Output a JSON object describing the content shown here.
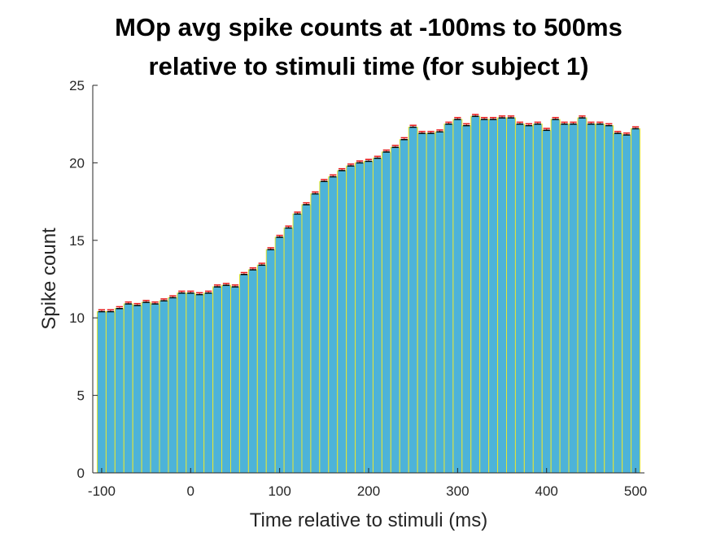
{
  "chart_data": {
    "type": "bar",
    "title_lines": [
      "MOp avg spike counts at -100ms to 500ms",
      "relative to stimuli time (for subject 1)"
    ],
    "xlabel": "Time relative to stimuli (ms)",
    "ylabel": "Spike count",
    "xlim": [
      -110,
      510
    ],
    "ylim": [
      0,
      25
    ],
    "xticks": [
      -100,
      0,
      100,
      200,
      300,
      400,
      500
    ],
    "yticks": [
      0,
      5,
      10,
      15,
      20,
      25
    ],
    "bin_width": 10,
    "bin_start": -100,
    "values": [
      10.4,
      10.4,
      10.6,
      10.9,
      10.8,
      11.0,
      10.9,
      11.1,
      11.3,
      11.6,
      11.6,
      11.5,
      11.6,
      12.0,
      12.1,
      12.0,
      12.8,
      13.1,
      13.4,
      14.4,
      15.2,
      15.8,
      16.7,
      17.3,
      18.0,
      18.8,
      19.1,
      19.5,
      19.8,
      20.0,
      20.1,
      20.3,
      20.7,
      21.0,
      21.5,
      22.3,
      21.9,
      21.9,
      22.0,
      22.5,
      22.8,
      22.4,
      23.0,
      22.8,
      22.8,
      22.9,
      22.9,
      22.5,
      22.4,
      22.5,
      22.1,
      22.8,
      22.5,
      22.5,
      22.9,
      22.5,
      22.5,
      22.4,
      21.9,
      21.8,
      22.2
    ],
    "errors": [
      0.12,
      0.12,
      0.12,
      0.12,
      0.12,
      0.12,
      0.12,
      0.12,
      0.12,
      0.12,
      0.12,
      0.12,
      0.12,
      0.12,
      0.12,
      0.12,
      0.12,
      0.12,
      0.12,
      0.12,
      0.12,
      0.12,
      0.12,
      0.12,
      0.12,
      0.12,
      0.12,
      0.12,
      0.12,
      0.12,
      0.12,
      0.12,
      0.12,
      0.12,
      0.12,
      0.12,
      0.12,
      0.12,
      0.12,
      0.12,
      0.12,
      0.12,
      0.12,
      0.12,
      0.12,
      0.12,
      0.12,
      0.12,
      0.12,
      0.12,
      0.12,
      0.12,
      0.12,
      0.12,
      0.12,
      0.12,
      0.12,
      0.12,
      0.12,
      0.12,
      0.12
    ],
    "bar_fill": "#4db3d9",
    "bar_edge": "#e6e632",
    "error_color": "#e61919",
    "cap_color": "#000000",
    "axis_color": "#262626",
    "grid": false
  }
}
